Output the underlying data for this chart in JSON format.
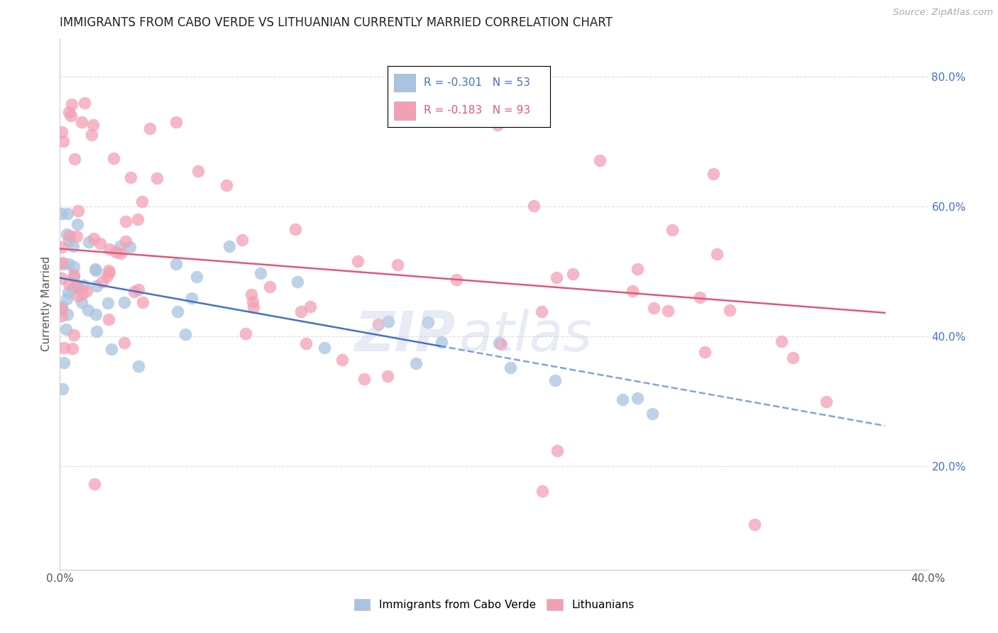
{
  "title": "IMMIGRANTS FROM CABO VERDE VS LITHUANIAN CURRENTLY MARRIED CORRELATION CHART",
  "source": "Source: ZipAtlas.com",
  "ylabel": "Currently Married",
  "r_cabo": -0.301,
  "n_cabo": 53,
  "r_lith": -0.183,
  "n_lith": 93,
  "xlim": [
    0.0,
    0.4
  ],
  "ylim": [
    0.04,
    0.86
  ],
  "color_cabo": "#a8c4e0",
  "color_lith": "#f4a0b4",
  "color_trend_cabo": "#4472c4",
  "color_trend_lith": "#e05878",
  "background": "#ffffff",
  "grid_color": "#dddddd",
  "yticks_right": [
    0.2,
    0.4,
    0.6,
    0.8
  ],
  "ytick_right_labels": [
    "20.0%",
    "40.0%",
    "60.0%",
    "80.0%"
  ],
  "cabo_trend_start_x": 0.0,
  "cabo_trend_solid_end_x": 0.175,
  "cabo_trend_dash_end_x": 0.38,
  "cabo_trend_y0": 0.49,
  "cabo_trend_slope": -0.6,
  "lith_trend_y0": 0.535,
  "lith_trend_slope": -0.26,
  "lith_trend_end_x": 0.38
}
